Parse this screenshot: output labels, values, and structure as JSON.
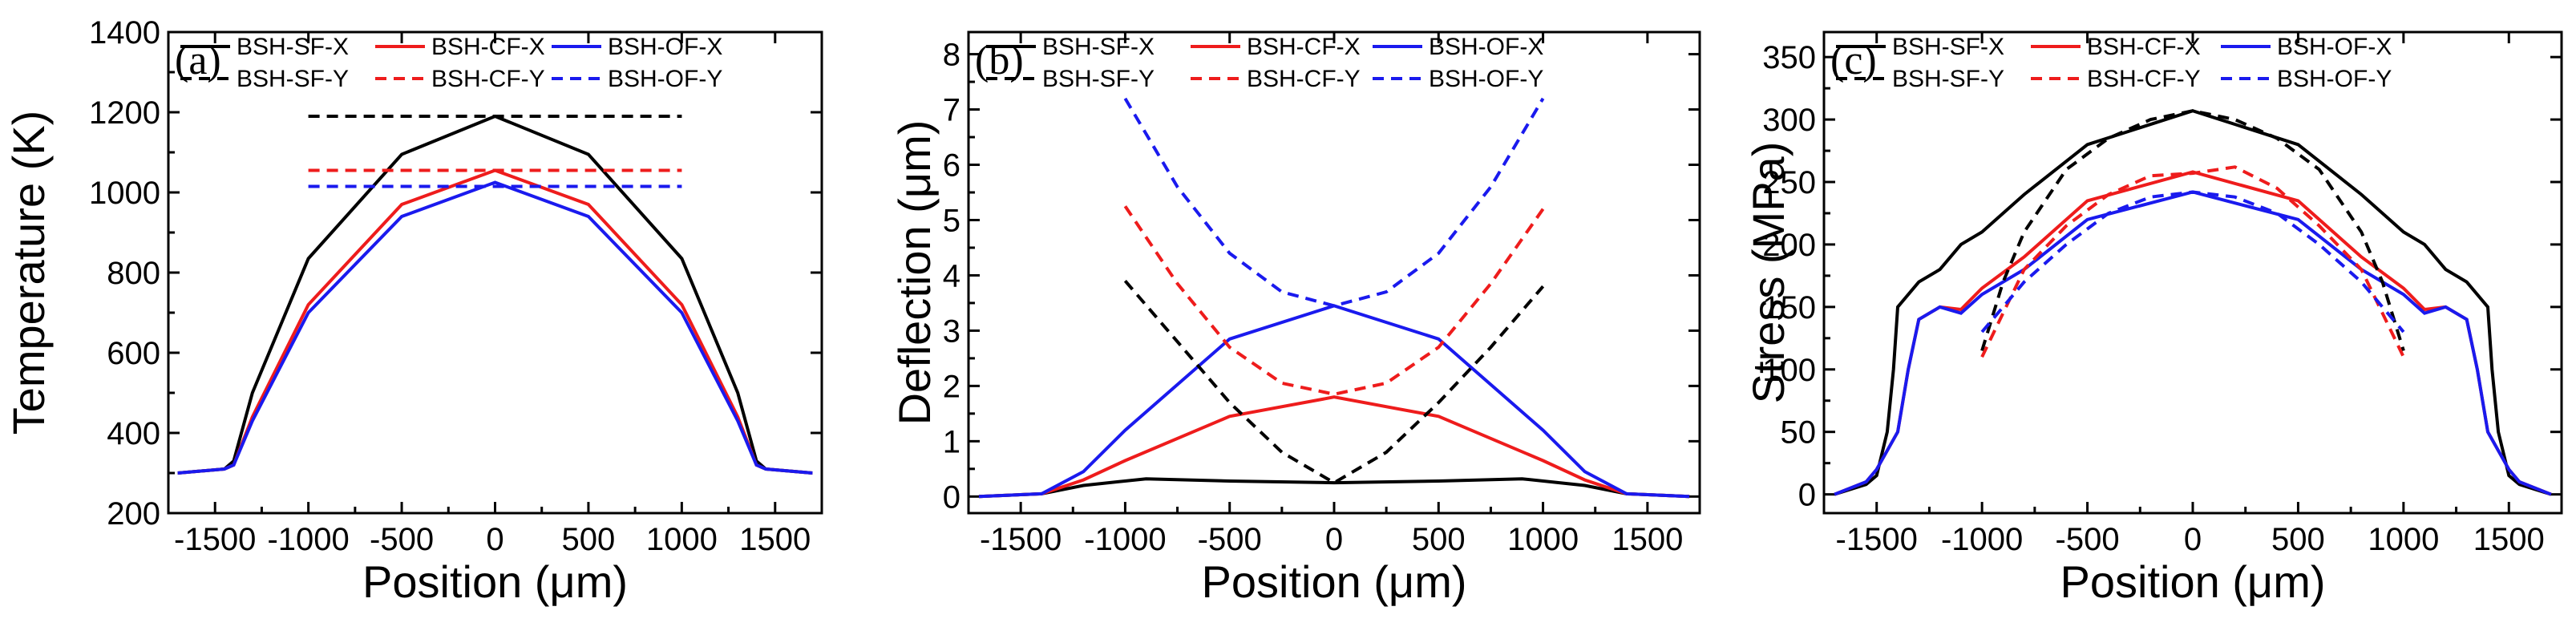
{
  "chart_data": [
    {
      "type": "line",
      "panel_label": "(a)",
      "title": "",
      "xlabel": "Position (μm)",
      "ylabel": "Temperature (K)",
      "xlim": [
        -1750,
        1750
      ],
      "ylim": [
        200,
        1400
      ],
      "xticks": [
        -1500,
        -1000,
        -500,
        0,
        500,
        1000,
        1500
      ],
      "yticks": [
        200,
        400,
        600,
        800,
        1000,
        1200,
        1400
      ],
      "legend": "top",
      "series": [
        {
          "name": "BSH-SF-X",
          "color": "#000000",
          "dash": "solid",
          "x": [
            -1700,
            -1450,
            -1400,
            -1300,
            -1000,
            -500,
            0,
            500,
            1000,
            1300,
            1400,
            1450,
            1700
          ],
          "y": [
            300,
            310,
            330,
            500,
            835,
            1095,
            1190,
            1095,
            835,
            500,
            330,
            310,
            300
          ]
        },
        {
          "name": "BSH-CF-X",
          "color": "#ee1c1c",
          "dash": "solid",
          "x": [
            -1700,
            -1450,
            -1400,
            -1300,
            -1000,
            -500,
            0,
            500,
            1000,
            1300,
            1400,
            1450,
            1700
          ],
          "y": [
            300,
            310,
            320,
            440,
            720,
            970,
            1055,
            970,
            720,
            440,
            320,
            310,
            300
          ]
        },
        {
          "name": "BSH-OF-X",
          "color": "#1a1aee",
          "dash": "solid",
          "x": [
            -1700,
            -1450,
            -1400,
            -1300,
            -1000,
            -500,
            0,
            500,
            1000,
            1300,
            1400,
            1450,
            1700
          ],
          "y": [
            300,
            310,
            320,
            430,
            700,
            940,
            1025,
            940,
            700,
            430,
            320,
            310,
            300
          ]
        },
        {
          "name": "BSH-SF-Y",
          "color": "#000000",
          "dash": "dashed",
          "x": [
            -1000,
            1000
          ],
          "y": [
            1190,
            1190
          ]
        },
        {
          "name": "BSH-CF-Y",
          "color": "#ee1c1c",
          "dash": "dashed",
          "x": [
            -1000,
            1000
          ],
          "y": [
            1055,
            1055
          ]
        },
        {
          "name": "BSH-OF-Y",
          "color": "#1a1aee",
          "dash": "dashed",
          "x": [
            -1000,
            1000
          ],
          "y": [
            1015,
            1015
          ]
        }
      ]
    },
    {
      "type": "line",
      "panel_label": "(b)",
      "title": "",
      "xlabel": "Position (μm)",
      "ylabel": "Deflection (μm)",
      "xlim": [
        -1750,
        1750
      ],
      "ylim": [
        -0.3,
        8.4
      ],
      "xticks": [
        -1500,
        -1000,
        -500,
        0,
        500,
        1000,
        1500
      ],
      "yticks": [
        0,
        1,
        2,
        3,
        4,
        5,
        6,
        7,
        8
      ],
      "legend": "top",
      "series": [
        {
          "name": "BSH-SF-X",
          "color": "#000000",
          "dash": "solid",
          "x": [
            -1700,
            -1400,
            -1200,
            -900,
            -500,
            0,
            500,
            900,
            1200,
            1400,
            1700
          ],
          "y": [
            0,
            0.05,
            0.2,
            0.32,
            0.28,
            0.25,
            0.28,
            0.32,
            0.2,
            0.05,
            0
          ]
        },
        {
          "name": "BSH-CF-X",
          "color": "#ee1c1c",
          "dash": "solid",
          "x": [
            -1700,
            -1400,
            -1200,
            -1000,
            -500,
            0,
            500,
            1000,
            1200,
            1400,
            1700
          ],
          "y": [
            0,
            0.05,
            0.3,
            0.65,
            1.45,
            1.8,
            1.45,
            0.65,
            0.3,
            0.05,
            0
          ]
        },
        {
          "name": "BSH-OF-X",
          "color": "#1a1aee",
          "dash": "solid",
          "x": [
            -1700,
            -1400,
            -1200,
            -1000,
            -500,
            0,
            500,
            1000,
            1200,
            1400,
            1700
          ],
          "y": [
            0,
            0.05,
            0.45,
            1.2,
            2.85,
            3.45,
            2.85,
            1.2,
            0.45,
            0.05,
            0
          ]
        },
        {
          "name": "BSH-SF-Y",
          "color": "#000000",
          "dash": "dashed",
          "x": [
            -1000,
            -750,
            -500,
            -250,
            0,
            250,
            500,
            750,
            1000
          ],
          "y": [
            3.9,
            2.8,
            1.7,
            0.8,
            0.25,
            0.8,
            1.7,
            2.7,
            3.8
          ]
        },
        {
          "name": "BSH-CF-Y",
          "color": "#ee1c1c",
          "dash": "dashed",
          "x": [
            -1000,
            -750,
            -500,
            -250,
            0,
            250,
            500,
            750,
            1000
          ],
          "y": [
            5.25,
            3.85,
            2.7,
            2.05,
            1.85,
            2.05,
            2.7,
            3.85,
            5.2
          ]
        },
        {
          "name": "BSH-OF-Y",
          "color": "#1a1aee",
          "dash": "dashed",
          "x": [
            -1000,
            -750,
            -500,
            -250,
            0,
            250,
            500,
            750,
            1000
          ],
          "y": [
            7.2,
            5.6,
            4.4,
            3.7,
            3.45,
            3.7,
            4.4,
            5.6,
            7.2
          ]
        }
      ]
    },
    {
      "type": "line",
      "panel_label": "(c)",
      "title": "",
      "xlabel": "Position (μm)",
      "ylabel": "Stress (MPa)",
      "xlim": [
        -1750,
        1750
      ],
      "ylim": [
        -15,
        370
      ],
      "xticks": [
        -1500,
        -1000,
        -500,
        0,
        500,
        1000,
        1500
      ],
      "yticks": [
        0,
        50,
        100,
        150,
        200,
        250,
        300,
        350
      ],
      "legend": "top",
      "series": [
        {
          "name": "BSH-SF-X",
          "color": "#000000",
          "dash": "solid",
          "x": [
            -1700,
            -1550,
            -1500,
            -1450,
            -1420,
            -1400,
            -1300,
            -1200,
            -1100,
            -1000,
            -800,
            -500,
            0,
            500,
            800,
            1000,
            1100,
            1200,
            1300,
            1400,
            1420,
            1450,
            1500,
            1550,
            1700
          ],
          "y": [
            0,
            8,
            15,
            50,
            100,
            150,
            170,
            180,
            200,
            210,
            240,
            280,
            307,
            280,
            240,
            210,
            200,
            180,
            170,
            150,
            100,
            50,
            15,
            8,
            0
          ]
        },
        {
          "name": "BSH-CF-X",
          "color": "#ee1c1c",
          "dash": "solid",
          "x": [
            -1700,
            -1550,
            -1500,
            -1400,
            -1350,
            -1300,
            -1200,
            -1100,
            -1000,
            -800,
            -500,
            0,
            500,
            800,
            1000,
            1100,
            1200,
            1300,
            1350,
            1400,
            1500,
            1550,
            1700
          ],
          "y": [
            0,
            10,
            20,
            50,
            100,
            140,
            150,
            148,
            165,
            190,
            235,
            258,
            235,
            190,
            165,
            148,
            150,
            140,
            100,
            50,
            20,
            10,
            0
          ]
        },
        {
          "name": "BSH-OF-X",
          "color": "#1a1aee",
          "dash": "solid",
          "x": [
            -1700,
            -1550,
            -1500,
            -1400,
            -1350,
            -1300,
            -1200,
            -1100,
            -1000,
            -800,
            -500,
            0,
            500,
            800,
            1000,
            1100,
            1200,
            1300,
            1350,
            1400,
            1500,
            1550,
            1700
          ],
          "y": [
            0,
            10,
            20,
            50,
            100,
            140,
            150,
            145,
            160,
            180,
            220,
            242,
            220,
            180,
            160,
            145,
            150,
            140,
            100,
            50,
            20,
            10,
            0
          ]
        },
        {
          "name": "BSH-SF-Y",
          "color": "#000000",
          "dash": "dashed",
          "x": [
            -1000,
            -900,
            -800,
            -600,
            -400,
            -200,
            0,
            200,
            400,
            600,
            800,
            900,
            1000
          ],
          "y": [
            115,
            170,
            210,
            260,
            285,
            300,
            307,
            300,
            285,
            260,
            210,
            170,
            115
          ]
        },
        {
          "name": "BSH-CF-Y",
          "color": "#ee1c1c",
          "dash": "dashed",
          "x": [
            -1000,
            -900,
            -800,
            -600,
            -400,
            -200,
            0,
            200,
            400,
            600,
            800,
            900,
            1000
          ],
          "y": [
            110,
            145,
            180,
            215,
            240,
            255,
            257,
            262,
            245,
            215,
            180,
            145,
            110
          ]
        },
        {
          "name": "BSH-OF-Y",
          "color": "#1a1aee",
          "dash": "dashed",
          "x": [
            -1000,
            -900,
            -800,
            -600,
            -400,
            -200,
            0,
            200,
            400,
            600,
            800,
            900,
            1000
          ],
          "y": [
            130,
            150,
            170,
            200,
            225,
            238,
            242,
            238,
            225,
            200,
            170,
            150,
            130
          ]
        }
      ]
    }
  ]
}
